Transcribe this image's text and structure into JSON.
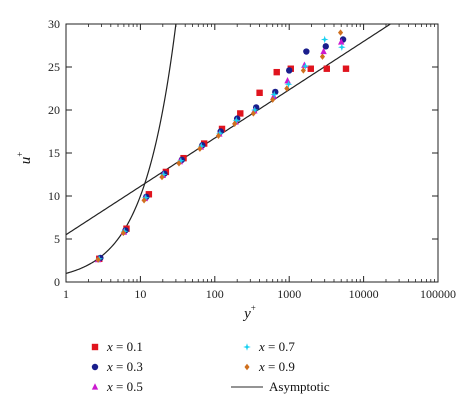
{
  "chart_data": {
    "type": "scatter",
    "x_scale": "log",
    "xlim": [
      1,
      100000
    ],
    "ylim": [
      0,
      30
    ],
    "x_ticks": [
      1,
      10,
      100,
      1000,
      10000,
      100000
    ],
    "x_tick_labels": [
      "1",
      "10",
      "100",
      "1000",
      "10000",
      "100000"
    ],
    "y_ticks": [
      0,
      5,
      10,
      15,
      20,
      25,
      30
    ],
    "y_tick_labels": [
      "0",
      "5",
      "10",
      "15",
      "20",
      "25",
      "30"
    ],
    "xlabel": {
      "base": "y",
      "sup": "+"
    },
    "ylabel": {
      "base": "u",
      "sup": "+"
    },
    "grid": false,
    "legend_position": "bottom",
    "series": [
      {
        "name": "x = 0.1",
        "var": "x",
        "value": "0.1",
        "marker": "square",
        "color": "#e0141e",
        "points": [
          [
            2.8,
            2.7
          ],
          [
            6.5,
            6.2
          ],
          [
            13,
            10.2
          ],
          [
            22,
            12.8
          ],
          [
            38,
            14.4
          ],
          [
            72,
            16.1
          ],
          [
            125,
            17.8
          ],
          [
            220,
            19.6
          ],
          [
            400,
            22.0
          ],
          [
            680,
            24.4
          ],
          [
            1050,
            24.8
          ],
          [
            1950,
            24.8
          ],
          [
            3200,
            24.8
          ],
          [
            5800,
            24.8
          ]
        ]
      },
      {
        "name": "x = 0.3",
        "var": "x",
        "value": "0.3",
        "marker": "circle",
        "color": "#1a1e8c",
        "points": [
          [
            2.9,
            2.8
          ],
          [
            6.3,
            6.0
          ],
          [
            12,
            9.9
          ],
          [
            21,
            12.6
          ],
          [
            36,
            14.2
          ],
          [
            68,
            15.9
          ],
          [
            120,
            17.5
          ],
          [
            200,
            19.0
          ],
          [
            360,
            20.3
          ],
          [
            650,
            22.1
          ],
          [
            1000,
            24.6
          ],
          [
            1700,
            26.8
          ],
          [
            3100,
            27.4
          ],
          [
            5300,
            28.2
          ]
        ]
      },
      {
        "name": "x = 0.5",
        "var": "x",
        "value": "0.5",
        "marker": "triangle",
        "color": "#cc1ad0",
        "points": [
          [
            2.7,
            2.6
          ],
          [
            6.0,
            5.8
          ],
          [
            11.5,
            9.7
          ],
          [
            20,
            12.4
          ],
          [
            34,
            14.0
          ],
          [
            65,
            15.7
          ],
          [
            115,
            17.2
          ],
          [
            190,
            18.6
          ],
          [
            340,
            19.9
          ],
          [
            620,
            21.6
          ],
          [
            950,
            23.4
          ],
          [
            1600,
            25.2
          ],
          [
            2900,
            26.8
          ],
          [
            5000,
            27.9
          ]
        ]
      },
      {
        "name": "x = 0.7",
        "var": "x",
        "value": "0.7",
        "marker": "star",
        "color": "#16d0f0",
        "points": [
          [
            2.8,
            2.7
          ],
          [
            6.1,
            5.9
          ],
          [
            11.8,
            9.8
          ],
          [
            20.5,
            12.5
          ],
          [
            35,
            14.1
          ],
          [
            66,
            15.8
          ],
          [
            117,
            17.3
          ],
          [
            195,
            18.8
          ],
          [
            345,
            20.0
          ],
          [
            630,
            21.8
          ],
          [
            980,
            23.0
          ],
          [
            1650,
            25.1
          ],
          [
            3000,
            28.2
          ],
          [
            5100,
            27.3
          ]
        ]
      },
      {
        "name": "x = 0.9",
        "var": "x",
        "value": "0.9",
        "marker": "diamond",
        "color": "#d0701e",
        "points": [
          [
            2.7,
            2.6
          ],
          [
            5.9,
            5.7
          ],
          [
            11.2,
            9.5
          ],
          [
            19.5,
            12.2
          ],
          [
            33,
            13.8
          ],
          [
            63,
            15.5
          ],
          [
            112,
            17.0
          ],
          [
            185,
            18.4
          ],
          [
            330,
            19.6
          ],
          [
            600,
            21.2
          ],
          [
            930,
            22.5
          ],
          [
            1550,
            24.6
          ],
          [
            2800,
            26.2
          ],
          [
            4900,
            29.0
          ]
        ]
      }
    ],
    "curves": [
      {
        "name": "Asymptotic",
        "kind": "viscous-sublayer",
        "formula": "u+ = y+",
        "color": "#222222"
      },
      {
        "name": "Asymptotic",
        "kind": "log-law",
        "formula": "u+ = 2.44 ln(y+) + 5.5",
        "color": "#222222"
      }
    ],
    "legend": [
      {
        "label_var": "x",
        "label_value": " = 0.1",
        "marker": "square",
        "color": "#e0141e"
      },
      {
        "label_var": "x",
        "label_value": " = 0.3",
        "marker": "circle",
        "color": "#1a1e8c"
      },
      {
        "label_var": "x",
        "label_value": " = 0.5",
        "marker": "triangle",
        "color": "#cc1ad0"
      },
      {
        "label_var": "x",
        "label_value": " = 0.7",
        "marker": "star",
        "color": "#16d0f0"
      },
      {
        "label_var": "x",
        "label_value": " = 0.9",
        "marker": "diamond",
        "color": "#d0701e"
      },
      {
        "label_text": "Asymptotic",
        "marker": "line",
        "color": "#555555"
      }
    ]
  }
}
